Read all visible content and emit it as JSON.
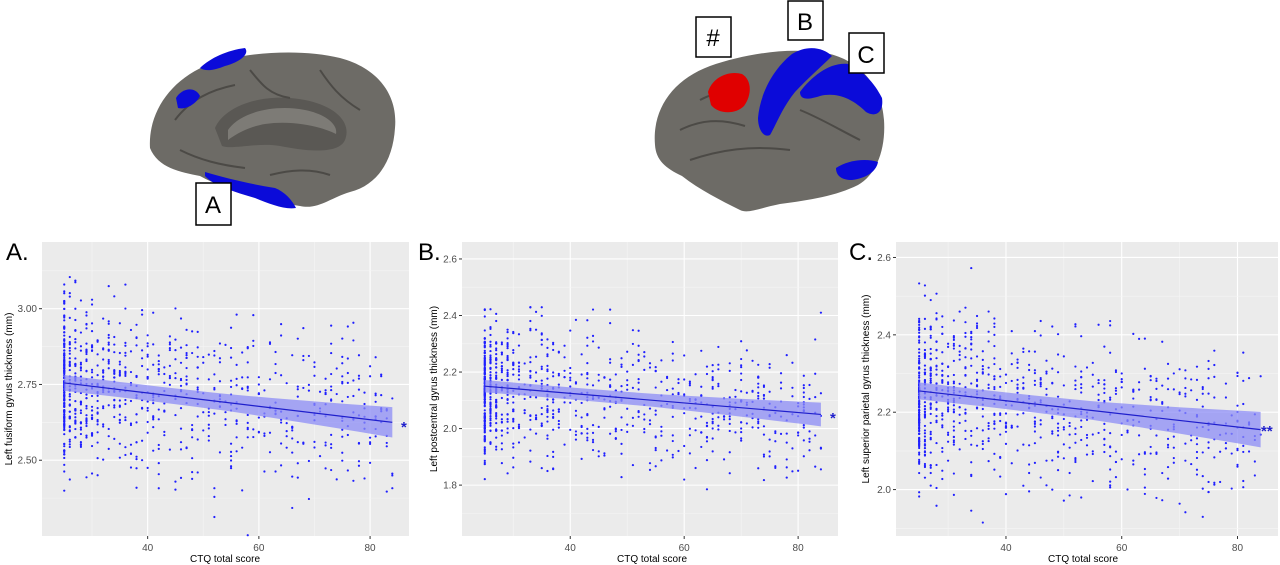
{
  "figure": {
    "brain_labels": {
      "A": "A",
      "B": "B",
      "C": "C",
      "hash": "#"
    },
    "colors": {
      "panel_bg": "#ebebeb",
      "grid_major": "#ffffff",
      "grid_minor": "#f5f5f5",
      "points": "#1f1fff",
      "line": "#1f1fcc",
      "ribbon": "#8c8cf5",
      "cortex": "#6d6b66",
      "highlight_blue": "#0b0bd9",
      "highlight_red": "#e00000"
    }
  },
  "chart_data": [
    {
      "type": "scatter",
      "panel_label": "A.",
      "xlabel": "CTQ total score",
      "ylabel": "Left fusiform gyrus thickness (mm)",
      "xlim": [
        21,
        87
      ],
      "ylim": [
        2.25,
        3.22
      ],
      "x_ticks": [
        40,
        60,
        80
      ],
      "y_ticks": [
        2.5,
        2.75,
        3.0
      ],
      "y_tick_labels": [
        "2.50",
        "2.75",
        "3.00"
      ],
      "grid": true,
      "fit": {
        "x": [
          25,
          84
        ],
        "y": [
          2.755,
          2.625
        ],
        "ci_half_width": [
          0.022,
          0.046
        ]
      },
      "significance": "*",
      "points_seed": 11,
      "points_summary": {
        "n": 900,
        "x_min": 25,
        "x_max": 84,
        "y_center": 2.74,
        "y_sd": 0.13
      }
    },
    {
      "type": "scatter",
      "panel_label": "B.",
      "xlabel": "CTQ total score",
      "ylabel": "Left postcentral gyrus thickness (mm)",
      "xlim": [
        21,
        87
      ],
      "ylim": [
        1.62,
        2.66
      ],
      "x_ticks": [
        40,
        60,
        80
      ],
      "y_ticks": [
        1.8,
        2.0,
        2.2,
        2.4,
        2.6
      ],
      "y_tick_labels": [
        "1.8",
        "2.0",
        "2.2",
        "2.4",
        "2.6"
      ],
      "grid": true,
      "fit": {
        "x": [
          25,
          84
        ],
        "y": [
          2.15,
          2.05
        ],
        "ci_half_width": [
          0.018,
          0.038
        ]
      },
      "significance": "*",
      "points_seed": 23,
      "points_summary": {
        "n": 900,
        "x_min": 25,
        "x_max": 84,
        "y_center": 2.14,
        "y_sd": 0.12
      }
    },
    {
      "type": "scatter",
      "panel_label": "C.",
      "xlabel": "CTQ total score",
      "ylabel": "Left superior parietal gyrus thickness (mm)",
      "xlim": [
        21,
        87
      ],
      "ylim": [
        1.88,
        2.64
      ],
      "x_ticks": [
        40,
        60,
        80
      ],
      "y_ticks": [
        2.0,
        2.2,
        2.4,
        2.6
      ],
      "y_tick_labels": [
        "2.0",
        "2.2",
        "2.4",
        "2.6"
      ],
      "grid": true,
      "fit": {
        "x": [
          25,
          84
        ],
        "y": [
          2.255,
          2.155
        ],
        "ci_half_width": [
          0.018,
          0.042
        ]
      },
      "significance": "**",
      "points_seed": 37,
      "points_summary": {
        "n": 900,
        "x_min": 25,
        "x_max": 84,
        "y_center": 2.24,
        "y_sd": 0.11
      }
    }
  ]
}
